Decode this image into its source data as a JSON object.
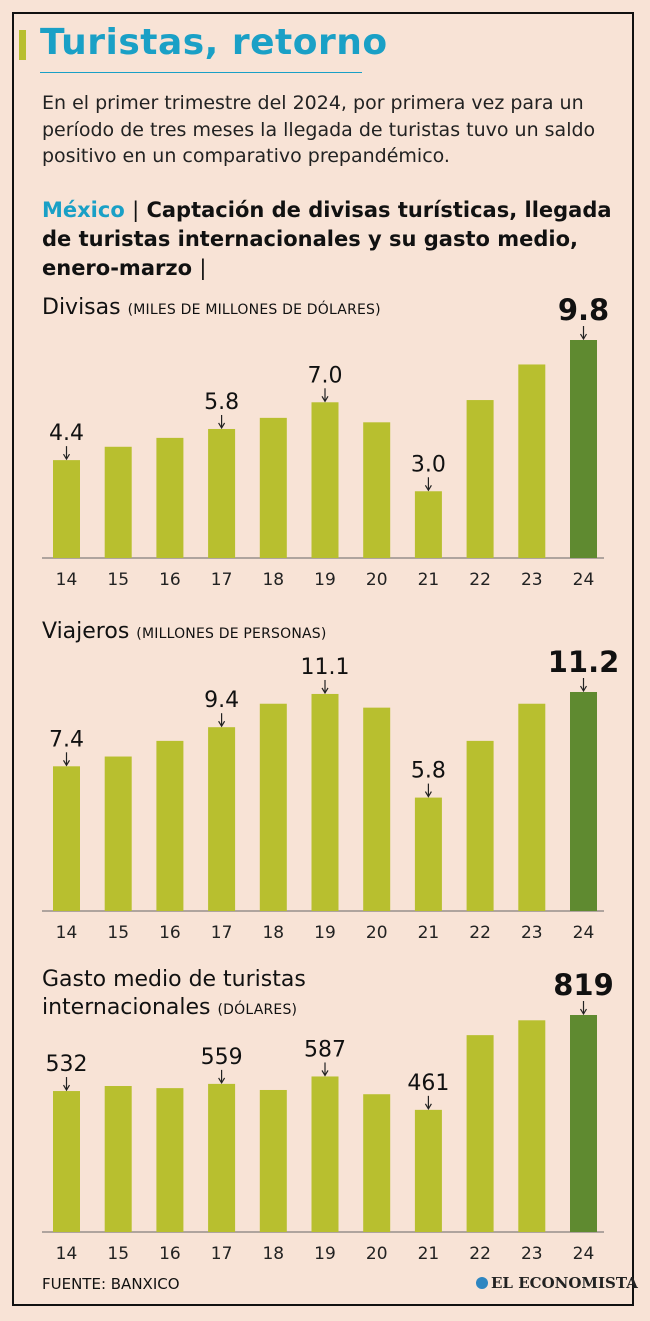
{
  "header": {
    "title": "Turistas, retorno",
    "subtitle": "En el primer trimestre del 2024, por primera vez para un período de tres meses la llegada de turistas tuvo un saldo positivo en un comparativo prepandémico.",
    "country": "México",
    "separator": "|",
    "heading": "Captación de divisas turísticas, llegada de turistas internacionales y su gasto medio, enero-marzo",
    "heading_end": "|"
  },
  "colors": {
    "bar": "#b8bf2f",
    "bar_highlight": "#5f8a30",
    "accent": "#1aa0c6",
    "background": "#f8e3d6"
  },
  "chart_data": [
    {
      "type": "bar",
      "title": "Divisas",
      "unit": "(MILES DE MILLONES DE DÓLARES)",
      "categories": [
        "14",
        "15",
        "16",
        "17",
        "18",
        "19",
        "20",
        "21",
        "22",
        "23",
        "24"
      ],
      "values": [
        4.4,
        5.0,
        5.4,
        5.8,
        6.3,
        7.0,
        6.1,
        3.0,
        7.1,
        8.7,
        9.8
      ],
      "labels": [
        {
          "index": 0,
          "text": "4.4"
        },
        {
          "index": 3,
          "text": "5.8"
        },
        {
          "index": 5,
          "text": "7.0"
        },
        {
          "index": 7,
          "text": "3.0"
        },
        {
          "index": 10,
          "text": "9.8",
          "bold": true
        }
      ],
      "highlight_index": 10
    },
    {
      "type": "bar",
      "title": "Viajeros",
      "unit": "(MILLONES DE PERSONAS)",
      "categories": [
        "14",
        "15",
        "16",
        "17",
        "18",
        "19",
        "20",
        "21",
        "22",
        "23",
        "24"
      ],
      "values": [
        7.4,
        7.9,
        8.7,
        9.4,
        10.6,
        11.1,
        10.4,
        5.8,
        8.7,
        10.6,
        11.2
      ],
      "labels": [
        {
          "index": 0,
          "text": "7.4"
        },
        {
          "index": 3,
          "text": "9.4"
        },
        {
          "index": 5,
          "text": "11.1"
        },
        {
          "index": 7,
          "text": "5.8"
        },
        {
          "index": 10,
          "text": "11.2",
          "bold": true
        }
      ],
      "highlight_index": 10
    },
    {
      "type": "bar",
      "title": "Gasto medio de turistas internacionales",
      "unit": "(DÓLARES)",
      "categories": [
        "14",
        "15",
        "16",
        "17",
        "18",
        "19",
        "20",
        "21",
        "22",
        "23",
        "24"
      ],
      "values": [
        532,
        551,
        543,
        559,
        536,
        587,
        520,
        461,
        743,
        799,
        819
      ],
      "labels": [
        {
          "index": 0,
          "text": "532"
        },
        {
          "index": 3,
          "text": "559"
        },
        {
          "index": 5,
          "text": "587"
        },
        {
          "index": 7,
          "text": "461"
        },
        {
          "index": 10,
          "text": "819",
          "bold": true
        }
      ],
      "highlight_index": 10
    }
  ],
  "footer": {
    "source": "FUENTE: BANXICO",
    "brand": "EL ECONOMISTA"
  }
}
